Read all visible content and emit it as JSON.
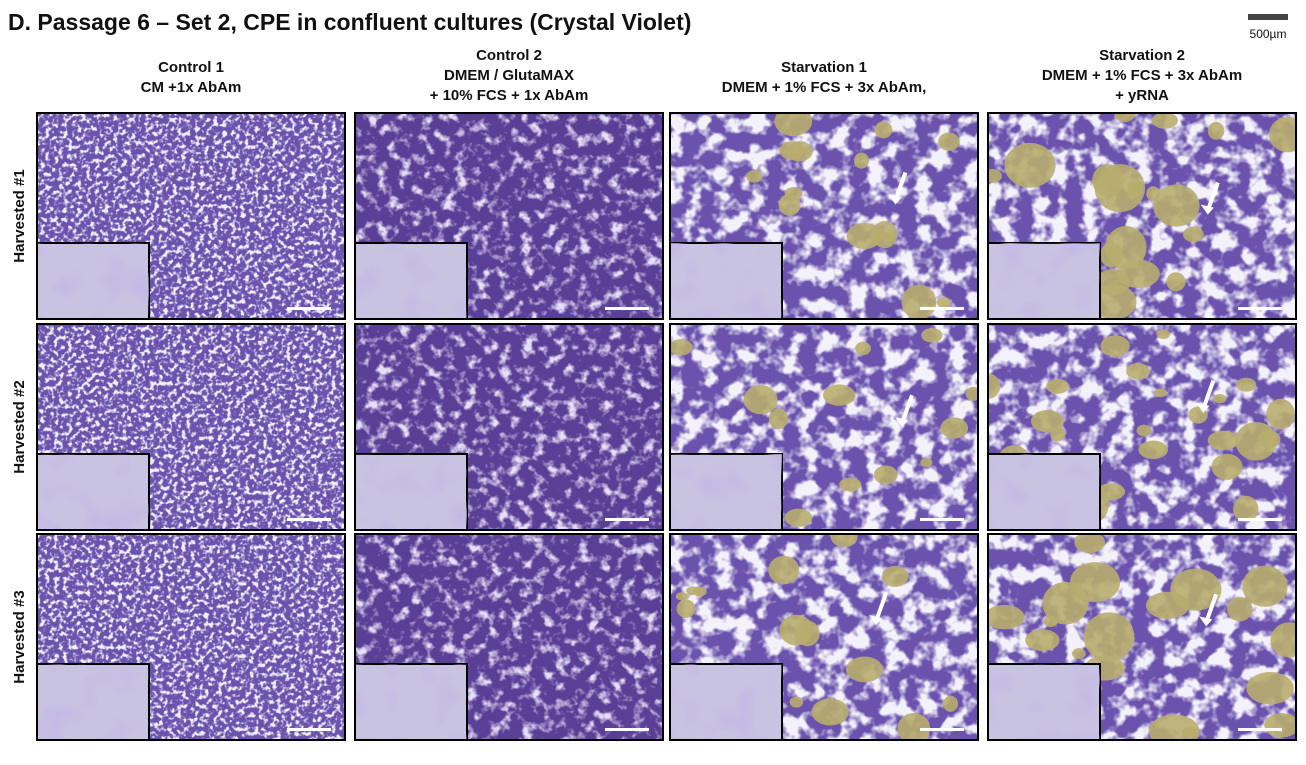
{
  "title": "D. Passage 6 – Set 2, CPE in confluent cultures (Crystal Violet)",
  "scale_label": "500µm",
  "columns": [
    {
      "lines": [
        "Control 1",
        "CM +1x AbAm"
      ]
    },
    {
      "lines": [
        "Control 2",
        "DMEM / GlutaMAX",
        "+ 10% FCS + 1x AbAm"
      ]
    },
    {
      "lines": [
        "Starvation 1",
        "DMEM  + 1% FCS + 3x AbAm,"
      ]
    },
    {
      "lines": [
        "Starvation 2",
        "DMEM + 1% FCS + 3x AbAm",
        "+ yRNA"
      ]
    }
  ],
  "rows": [
    "Harvested #1",
    "Harvested #2",
    "Harvested #3"
  ]
}
